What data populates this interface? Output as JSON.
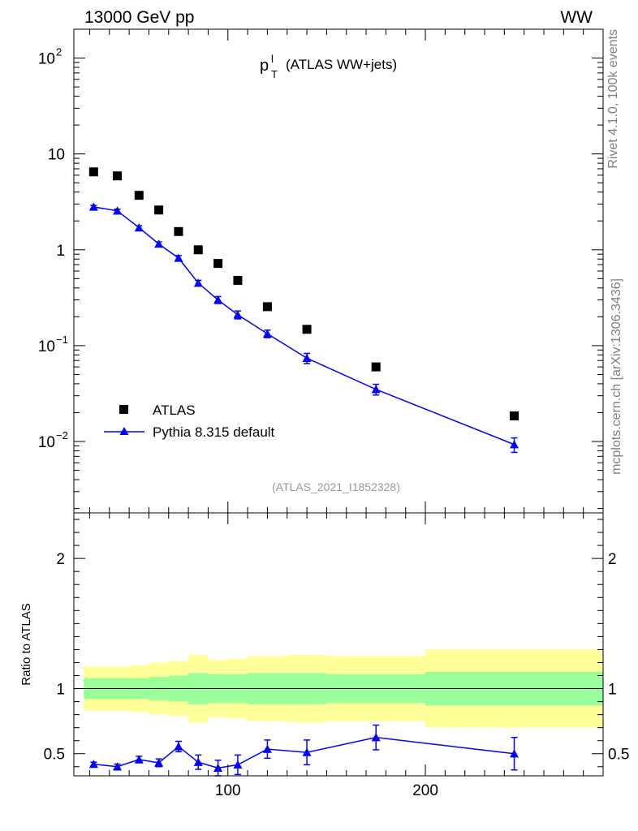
{
  "header": {
    "left": "13000 GeV pp",
    "right": "WW"
  },
  "side_text": {
    "rivet": "Rivet 4.1.0,  100k events",
    "mcplots": "mcplots.cern.ch [arXiv:1306.3436]"
  },
  "chart_data": {
    "type": "scatter",
    "title": "(ATLAS WW+jets)",
    "title_symbol": {
      "base": "p",
      "sup": "l",
      "sub": "T"
    },
    "analysis_id": "(ATLAS_2021_I1852328)",
    "xlim": [
      22,
      290
    ],
    "xticks": [
      100,
      200
    ],
    "main": {
      "yscale": "log",
      "ylim": [
        0.0018,
        200
      ],
      "ytick_labels": [
        {
          "value": 0.01,
          "base": "10",
          "exp": "−2"
        },
        {
          "value": 0.1,
          "base": "10",
          "exp": "−1"
        },
        {
          "value": 1,
          "base": "1",
          "exp": ""
        },
        {
          "value": 10,
          "base": "10",
          "exp": ""
        },
        {
          "value": 100,
          "base": "10",
          "exp": "2"
        }
      ]
    },
    "ratio": {
      "ylabel": "Ratio to ATLAS",
      "ylim": [
        0.33,
        2.35
      ],
      "ytick_labels": [
        {
          "value": 0.5,
          "text": "0.5"
        },
        {
          "value": 1,
          "text": "1"
        },
        {
          "value": 2,
          "text": "2"
        }
      ]
    },
    "legend": {
      "position": "bottom-left",
      "entries": [
        "ATLAS",
        "Pythia 8.315 default"
      ]
    },
    "bins": [
      {
        "lo": 27,
        "hi": 38,
        "x": 32,
        "data": 6.5,
        "mc": 2.8,
        "mc_err": 0.1,
        "ratio": 0.42,
        "ratio_err": 0.015,
        "band_in": [
          0.92,
          1.08
        ],
        "band_out": [
          0.83,
          1.17
        ]
      },
      {
        "lo": 38,
        "hi": 50,
        "x": 44,
        "data": 5.9,
        "mc": 2.55,
        "mc_err": 0.1,
        "ratio": 0.4,
        "ratio_err": 0.02,
        "band_in": [
          0.92,
          1.08
        ],
        "band_out": [
          0.83,
          1.17
        ]
      },
      {
        "lo": 50,
        "hi": 60,
        "x": 55,
        "data": 3.7,
        "mc": 1.7,
        "mc_err": 0.08,
        "ratio": 0.455,
        "ratio_err": 0.025,
        "band_in": [
          0.92,
          1.08
        ],
        "band_out": [
          0.82,
          1.18
        ]
      },
      {
        "lo": 60,
        "hi": 70,
        "x": 65,
        "data": 2.6,
        "mc": 1.15,
        "mc_err": 0.06,
        "ratio": 0.43,
        "ratio_err": 0.03,
        "band_in": [
          0.91,
          1.09
        ],
        "band_out": [
          0.8,
          1.2
        ]
      },
      {
        "lo": 70,
        "hi": 80,
        "x": 75,
        "data": 1.55,
        "mc": 0.82,
        "mc_err": 0.05,
        "ratio": 0.555,
        "ratio_err": 0.04,
        "band_in": [
          0.9,
          1.1
        ],
        "band_out": [
          0.79,
          1.21
        ]
      },
      {
        "lo": 80,
        "hi": 90,
        "x": 85,
        "data": 1.0,
        "mc": 0.45,
        "mc_err": 0.03,
        "ratio": 0.435,
        "ratio_err": 0.055,
        "band_in": [
          0.88,
          1.12
        ],
        "band_out": [
          0.74,
          1.26
        ]
      },
      {
        "lo": 90,
        "hi": 100,
        "x": 95,
        "data": 0.72,
        "mc": 0.3,
        "mc_err": 0.025,
        "ratio": 0.39,
        "ratio_err": 0.06,
        "band_in": [
          0.89,
          1.11
        ],
        "band_out": [
          0.78,
          1.22
        ]
      },
      {
        "lo": 100,
        "hi": 110,
        "x": 105,
        "data": 0.48,
        "mc": 0.21,
        "mc_err": 0.02,
        "ratio": 0.415,
        "ratio_err": 0.075,
        "band_in": [
          0.89,
          1.11
        ],
        "band_out": [
          0.77,
          1.23
        ]
      },
      {
        "lo": 110,
        "hi": 130,
        "x": 120,
        "data": 0.255,
        "mc": 0.133,
        "mc_err": 0.012,
        "ratio": 0.535,
        "ratio_err": 0.07,
        "band_in": [
          0.88,
          1.12
        ],
        "band_out": [
          0.75,
          1.25
        ]
      },
      {
        "lo": 130,
        "hi": 150,
        "x": 140,
        "data": 0.148,
        "mc": 0.074,
        "mc_err": 0.009,
        "ratio": 0.51,
        "ratio_err": 0.095,
        "band_in": [
          0.88,
          1.12
        ],
        "band_out": [
          0.74,
          1.26
        ]
      },
      {
        "lo": 150,
        "hi": 200,
        "x": 175,
        "data": 0.06,
        "mc": 0.035,
        "mc_err": 0.0045,
        "ratio": 0.625,
        "ratio_err": 0.095,
        "band_in": [
          0.89,
          1.11
        ],
        "band_out": [
          0.75,
          1.25
        ]
      },
      {
        "lo": 200,
        "hi": 290,
        "x": 245,
        "data": 0.0185,
        "mc": 0.0093,
        "mc_err": 0.0016,
        "ratio": 0.5,
        "ratio_err": 0.125,
        "band_in": [
          0.87,
          1.13
        ],
        "band_out": [
          0.7,
          1.3
        ]
      }
    ],
    "colors": {
      "data": "#000000",
      "mc": "#0000ff",
      "band_inner": "#99ff99",
      "band_outer": "#ffff99",
      "frame": "#000000"
    }
  }
}
